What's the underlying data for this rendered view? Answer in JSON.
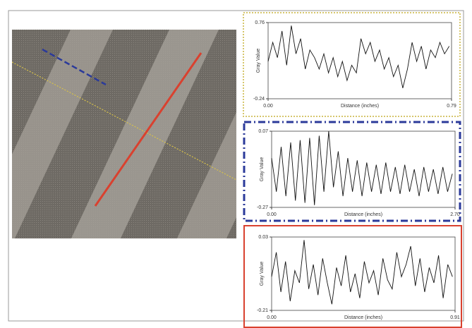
{
  "chart_data": [
    {
      "type": "line",
      "xlabel": "Distance (inches)",
      "ylabel": "Gray Value",
      "color": "#111111",
      "x": [
        0,
        0.02,
        0.04,
        0.06,
        0.08,
        0.1,
        0.12,
        0.14,
        0.16,
        0.18,
        0.2,
        0.22,
        0.24,
        0.26,
        0.28,
        0.3,
        0.32,
        0.34,
        0.36,
        0.38,
        0.4,
        0.42,
        0.44,
        0.46,
        0.48,
        0.5,
        0.52,
        0.54,
        0.56,
        0.58,
        0.6,
        0.62,
        0.64,
        0.66,
        0.68,
        0.7,
        0.72,
        0.74,
        0.76,
        0.78
      ],
      "values": [
        0.25,
        0.5,
        0.3,
        0.65,
        0.2,
        0.72,
        0.35,
        0.55,
        0.15,
        0.4,
        0.3,
        0.15,
        0.35,
        0.1,
        0.3,
        0.05,
        0.25,
        0.0,
        0.2,
        0.1,
        0.55,
        0.35,
        0.5,
        0.25,
        0.4,
        0.15,
        0.3,
        0.05,
        0.2,
        -0.1,
        0.15,
        0.5,
        0.25,
        0.45,
        0.15,
        0.4,
        0.3,
        0.5,
        0.35,
        0.45
      ],
      "xlim": [
        0,
        0.79
      ],
      "ylim": [
        -0.24,
        0.76
      ],
      "xticks": [
        {
          "value": 0,
          "label": "0.00"
        },
        0.79
      ],
      "yticks": [
        -0.24,
        0.76
      ]
    },
    {
      "type": "line",
      "xlabel": "Distance (inches)",
      "ylabel": "Gray Value",
      "color": "#111111",
      "x": [
        0,
        0.07,
        0.14,
        0.21,
        0.28,
        0.35,
        0.42,
        0.49,
        0.56,
        0.63,
        0.7,
        0.77,
        0.84,
        0.91,
        0.98,
        1.05,
        1.12,
        1.19,
        1.26,
        1.33,
        1.4,
        1.47,
        1.54,
        1.61,
        1.68,
        1.75,
        1.82,
        1.89,
        1.96,
        2.03,
        2.1,
        2.17,
        2.24,
        2.31,
        2.38,
        2.45,
        2.52,
        2.59,
        2.66
      ],
      "values": [
        -0.05,
        -0.2,
        0.0,
        -0.22,
        0.02,
        -0.24,
        0.03,
        -0.25,
        0.04,
        -0.26,
        0.05,
        -0.2,
        0.07,
        -0.18,
        -0.02,
        -0.22,
        -0.05,
        -0.2,
        -0.06,
        -0.22,
        -0.07,
        -0.2,
        -0.08,
        -0.21,
        -0.07,
        -0.2,
        -0.09,
        -0.21,
        -0.08,
        -0.2,
        -0.1,
        -0.22,
        -0.09,
        -0.2,
        -0.1,
        -0.21,
        -0.09,
        -0.2,
        -0.12
      ],
      "xlim": [
        0,
        2.7
      ],
      "ylim": [
        -0.27,
        0.07
      ],
      "xticks": [
        {
          "value": 0,
          "label": "0.00"
        },
        {
          "value": 2.7,
          "label": "2.70"
        }
      ],
      "yticks": [
        -0.27,
        0.07
      ]
    },
    {
      "type": "line",
      "xlabel": "Distance (inches)",
      "ylabel": "Gray Value",
      "color": "#111111",
      "x": [
        0,
        0.023,
        0.046,
        0.069,
        0.092,
        0.115,
        0.138,
        0.161,
        0.184,
        0.207,
        0.23,
        0.253,
        0.276,
        0.299,
        0.322,
        0.345,
        0.368,
        0.391,
        0.414,
        0.437,
        0.46,
        0.483,
        0.506,
        0.529,
        0.552,
        0.575,
        0.598,
        0.621,
        0.644,
        0.667,
        0.69,
        0.713,
        0.736,
        0.759,
        0.782,
        0.805,
        0.828,
        0.851,
        0.874,
        0.897
      ],
      "values": [
        -0.1,
        -0.02,
        -0.15,
        -0.05,
        -0.18,
        -0.08,
        -0.12,
        0.02,
        -0.14,
        -0.06,
        -0.16,
        -0.04,
        -0.12,
        -0.19,
        -0.07,
        -0.13,
        -0.03,
        -0.15,
        -0.09,
        -0.17,
        -0.05,
        -0.12,
        -0.08,
        -0.16,
        -0.04,
        -0.11,
        -0.14,
        -0.02,
        -0.1,
        -0.06,
        0.0,
        -0.13,
        -0.04,
        -0.15,
        -0.07,
        -0.12,
        -0.03,
        -0.17,
        -0.06,
        -0.1
      ],
      "xlim": [
        0,
        0.91
      ],
      "ylim": [
        -0.21,
        0.03
      ],
      "xticks": [
        {
          "value": 0,
          "label": "0.00"
        },
        0.91
      ],
      "yticks": [
        -0.21,
        0.03
      ]
    }
  ]
}
